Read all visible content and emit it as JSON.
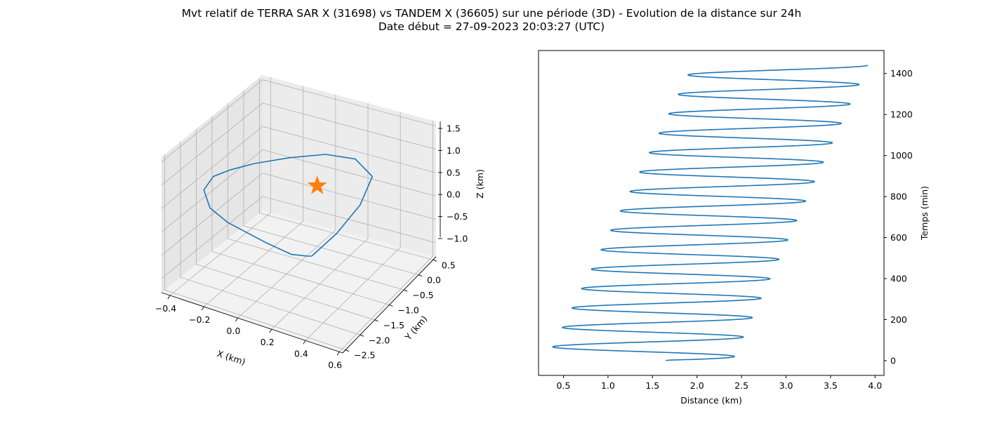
{
  "figure": {
    "title_line1": "Mvt relatif de TERRA SAR X (31698) vs TANDEM X (36605) sur une période (3D) - Evolution de la distance sur 24h",
    "title_line2": "Date début = 27-09-2023 20:03:27 (UTC)"
  },
  "colors": {
    "series": "#1f77b4",
    "marker": "#ff7f0e",
    "pane": "#f2f2f2",
    "grid": "#b0b0b0"
  },
  "chart_data": [
    {
      "type": "line",
      "projection": "3d",
      "title": "",
      "xlabel": "X (km)",
      "ylabel": "Y (km)",
      "zlabel": "Z (km)",
      "xlim": [
        -0.45,
        0.62
      ],
      "ylim": [
        -2.6,
        0.6
      ],
      "zlim": [
        -1.3,
        1.6
      ],
      "x_ticks": [
        "−0.4",
        "−0.2",
        "0.0",
        "0.2",
        "0.4",
        "0.6"
      ],
      "y_ticks": [
        "−2.5",
        "−2.0",
        "−1.5",
        "−1.0",
        "−0.5",
        "0.0",
        "0.5"
      ],
      "z_ticks": [
        "−1.0",
        "−0.5",
        "0.0",
        "0.5",
        "1.0",
        "1.5"
      ],
      "grid": true,
      "series": [
        {
          "x": [
            0.06,
            0.12,
            0.17,
            0.19,
            0.15,
            0.07,
            -0.02,
            -0.1,
            -0.15,
            -0.18,
            -0.2,
            -0.2,
            -0.17,
            -0.05,
            0.03,
            0.05,
            0.06
          ],
          "y": [
            -0.5,
            0.0,
            0.5,
            0.8,
            0.45,
            -0.1,
            -0.8,
            -1.5,
            -2.0,
            -2.4,
            -2.6,
            -2.4,
            -2.0,
            -1.4,
            -1.0,
            -0.6,
            -0.5
          ],
          "z": [
            -1.15,
            -0.9,
            -0.55,
            -0.1,
            0.45,
            0.8,
            1.05,
            1.25,
            1.35,
            1.4,
            1.2,
            0.7,
            0.2,
            -0.45,
            -0.85,
            -1.1,
            -1.15
          ]
        }
      ],
      "markers": [
        {
          "x": 0.0,
          "y": 0.0,
          "z": 0.0,
          "shape": "star"
        }
      ]
    },
    {
      "type": "line",
      "title": "",
      "xlabel": "Distance (km)",
      "ylabel": "Temps (min)",
      "xlim": [
        0.22,
        4.1
      ],
      "ylim": [
        -72,
        1512
      ],
      "x_ticks": [
        0.5,
        1.0,
        1.5,
        2.0,
        2.5,
        3.0,
        3.5,
        4.0
      ],
      "y_ticks": [
        0,
        200,
        400,
        600,
        800,
        1000,
        1200,
        1400
      ],
      "y_axis_position": "right",
      "grid": false,
      "series": [
        {
          "period_min": 94.7,
          "time_range": [
            0,
            1440
          ],
          "distance_start": 1.65,
          "first_max": {
            "t": 20,
            "d": 2.42
          },
          "first_min": {
            "t": 68,
            "d": 0.38
          },
          "last_max": {
            "t": 1440,
            "d": 3.92
          },
          "last_min": {
            "t": 1398,
            "d": 1.9
          }
        }
      ]
    }
  ]
}
